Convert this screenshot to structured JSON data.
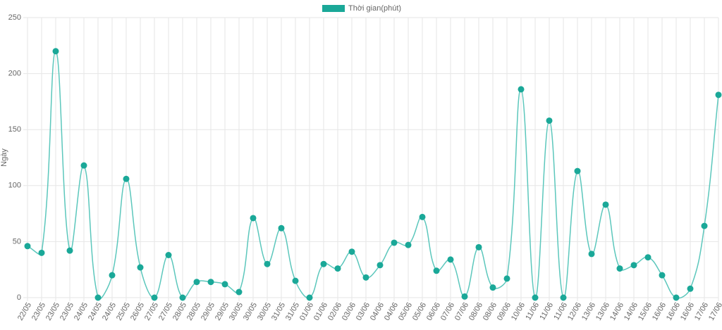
{
  "chart_data": {
    "type": "line",
    "y_label": "Ngày",
    "categories": [
      "22/05",
      "23/05",
      "23/05",
      "23/05",
      "24/05",
      "24/05",
      "24/05",
      "25/05",
      "26/05",
      "27/05",
      "27/05",
      "28/05",
      "28/05",
      "29/05",
      "29/05",
      "30/05",
      "30/05",
      "30/05",
      "31/05",
      "31/05",
      "01/06",
      "01/06",
      "02/06",
      "03/06",
      "03/06",
      "04/06",
      "04/06",
      "05/06",
      "05/06",
      "06/06",
      "07/06",
      "07/06",
      "08/06",
      "08/06",
      "09/06",
      "10/06",
      "11/06",
      "11/06",
      "11/06",
      "12/06",
      "13/06",
      "13/06",
      "14/06",
      "14/06",
      "15/06",
      "16/06",
      "16/06",
      "16/06",
      "17/06",
      "17/06"
    ],
    "series": [
      {
        "name": "Thời gian(phút)",
        "color": "#1aa898",
        "line_color": "#5cc7bc",
        "values": [
          46,
          40,
          220,
          42,
          118,
          0,
          20,
          106,
          27,
          0,
          38,
          0,
          14,
          14,
          12,
          5,
          71,
          30,
          62,
          15,
          0,
          30,
          26,
          41,
          18,
          29,
          49,
          47,
          72,
          24,
          34,
          1,
          45,
          9,
          17,
          186,
          0,
          158,
          0,
          113,
          39,
          83,
          26,
          29,
          36,
          20,
          0,
          8,
          64,
          181
        ]
      }
    ],
    "ylim": [
      0,
      250
    ],
    "yticks": [
      0,
      50,
      100,
      150,
      200,
      250
    ],
    "grid": true,
    "legend": "top"
  }
}
